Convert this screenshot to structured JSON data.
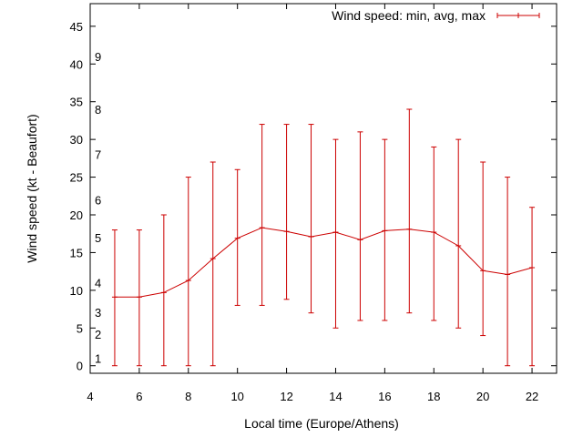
{
  "chart_data": {
    "type": "line",
    "xlabel": "Local time (Europe/Athens)",
    "ylabel": "Wind speed (kt - Beaufort)",
    "xlim": [
      4,
      23
    ],
    "ylim": [
      -1,
      48
    ],
    "xticks": [
      4,
      6,
      8,
      10,
      12,
      14,
      16,
      18,
      20,
      22
    ],
    "yticks": [
      0,
      5,
      10,
      15,
      20,
      25,
      30,
      35,
      40,
      45
    ],
    "beaufort_labels": [
      {
        "label": "1",
        "y": 1
      },
      {
        "label": "2",
        "y": 4.2
      },
      {
        "label": "3",
        "y": 7.1
      },
      {
        "label": "4",
        "y": 11
      },
      {
        "label": "5",
        "y": 17
      },
      {
        "label": "6",
        "y": 22
      },
      {
        "label": "7",
        "y": 28
      },
      {
        "label": "8",
        "y": 34
      },
      {
        "label": "9",
        "y": 41
      }
    ],
    "legend": {
      "position": "top-right"
    },
    "series": [
      {
        "name": "Wind speed: min, avg, max",
        "color": "#cc0000",
        "x": [
          5,
          6,
          7,
          8,
          9,
          10,
          11,
          12,
          13,
          14,
          15,
          16,
          17,
          18,
          19,
          20,
          21,
          22
        ],
        "avg": [
          9.1,
          9.1,
          9.7,
          11.3,
          14.2,
          16.9,
          18.3,
          17.8,
          17.1,
          17.7,
          16.7,
          17.9,
          18.1,
          17.7,
          15.9,
          12.6,
          12.1,
          13.0
        ],
        "min": [
          0,
          0,
          0,
          0,
          0,
          8,
          8,
          8.8,
          7,
          5,
          6,
          6,
          7,
          6,
          5,
          4,
          0,
          0
        ],
        "max": [
          18,
          18,
          20,
          25,
          27,
          26,
          32,
          32,
          32,
          30,
          31,
          30,
          34,
          29,
          30,
          27,
          25,
          21
        ]
      }
    ]
  }
}
